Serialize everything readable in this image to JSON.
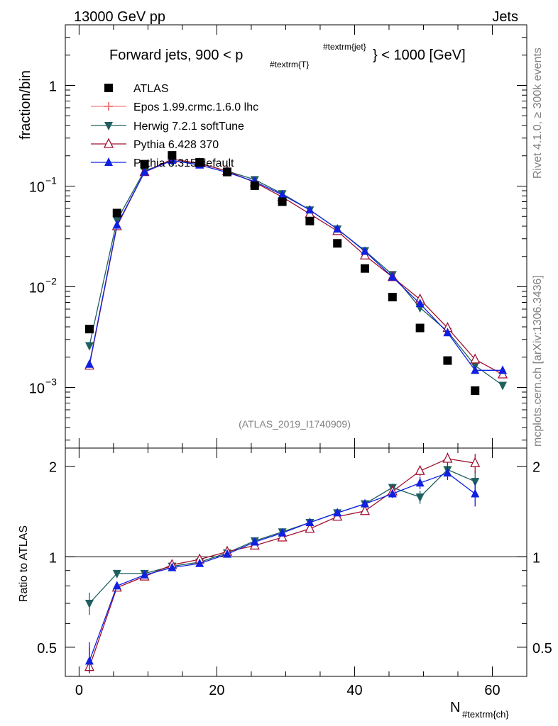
{
  "header": {
    "energy": "13000 GeV pp",
    "category": "Jets"
  },
  "side_labels": {
    "rivet": "Rivet 4.1.0, ≥ 300k events",
    "site": "mcplots.cern.ch [arXiv:1306.3436]"
  },
  "colors": {
    "data": "#000000",
    "epos": "#f08080",
    "herwig": "#1f5f5f",
    "pythia6": "#a01030",
    "pythia8": "#1020e0",
    "refline": "#000000",
    "sidetext": "#808080"
  },
  "chart_data": [
    {
      "type": "scatter",
      "panel": "main",
      "title_parts": {
        "prefix": "Forward jets, 900 < p",
        "sub": "#textrm{T}",
        "sup": "#textrm{jet}",
        "suffix": "} < 1000 [GeV]"
      },
      "ylabel": "fraction/bin",
      "analysis_id": "(ATLAS_2019_I1740909)",
      "yscale": "log",
      "xlim": [
        -2,
        65
      ],
      "ylim": [
        0.00025,
        4.0
      ],
      "yticks": [
        {
          "value": 0.001,
          "base": "10",
          "exp": "−3"
        },
        {
          "value": 0.01,
          "base": "10",
          "exp": "−2"
        },
        {
          "value": 0.1,
          "base": "10",
          "exp": "−1"
        },
        {
          "value": 1,
          "base": "1",
          "exp": ""
        }
      ],
      "x": [
        1.5,
        5.5,
        9.5,
        13.5,
        17.5,
        21.5,
        25.5,
        29.5,
        33.5,
        37.5,
        41.5,
        45.5,
        49.5,
        53.5,
        57.5,
        61.5
      ],
      "series": [
        {
          "key": "atlas",
          "name": "ATLAS",
          "marker": "square",
          "values": [
            0.0038,
            0.054,
            0.165,
            0.202,
            0.172,
            0.138,
            0.101,
            0.07,
            0.045,
            0.027,
            0.0152,
            0.0079,
            0.0039,
            0.00185,
            0.00093,
            null
          ]
        },
        {
          "key": "epos",
          "name": "Epos 1.99.crmc.1.6.0 lhc",
          "marker": "cross",
          "values": [
            null,
            null,
            null,
            null,
            null,
            null,
            null,
            null,
            null,
            null,
            null,
            null,
            null,
            null,
            null,
            null
          ]
        },
        {
          "key": "herwig",
          "name": "Herwig 7.2.1 softTune",
          "marker": "triangle-down",
          "values": [
            0.0026,
            0.046,
            0.142,
            0.178,
            0.168,
            0.141,
            0.116,
            0.084,
            0.058,
            0.0375,
            0.0228,
            0.0132,
            0.0062,
            0.0036,
            0.00165,
            0.00105
          ]
        },
        {
          "key": "pythia6",
          "name": "Pythia 6.428 370",
          "marker": "triangle-open",
          "values": [
            0.00165,
            0.04,
            0.138,
            0.185,
            0.168,
            0.141,
            0.109,
            0.078,
            0.053,
            0.0358,
            0.0205,
            0.0125,
            0.0075,
            0.0039,
            0.0019,
            0.00135
          ]
        },
        {
          "key": "pythia8",
          "name": "Pythia 8.315 default",
          "marker": "triangle-up",
          "values": [
            0.0017,
            0.041,
            0.138,
            0.18,
            0.162,
            0.137,
            0.111,
            0.082,
            0.058,
            0.0375,
            0.0225,
            0.0125,
            0.0068,
            0.0035,
            0.00148,
            0.00148
          ]
        }
      ],
      "legend_position": "top-left"
    },
    {
      "type": "line",
      "panel": "ratio",
      "ylabel": "Ratio to ATLAS",
      "xlabel_base": "N",
      "xlabel_sub": "#textrm{ch}",
      "xlim": [
        -2,
        65
      ],
      "ylim": [
        0.4,
        2.3
      ],
      "yscale": "log",
      "reference": 1,
      "xticks": [
        0,
        20,
        40,
        60
      ],
      "yticks": [
        0.5,
        1,
        2
      ],
      "yticks_right": [
        0.5,
        1,
        2
      ],
      "x": [
        1.5,
        5.5,
        9.5,
        13.5,
        17.5,
        21.5,
        25.5,
        29.5,
        33.5,
        37.5,
        41.5,
        45.5,
        49.5,
        53.5,
        57.5,
        61.5
      ],
      "series": [
        {
          "key": "herwig",
          "name": "Herwig 7.2.1 softTune",
          "values": [
            0.7,
            0.88,
            0.88,
            0.93,
            0.96,
            1.03,
            1.13,
            1.21,
            1.3,
            1.4,
            1.5,
            1.7,
            1.58,
            1.95,
            1.78,
            null
          ],
          "errors": [
            0.06,
            0.01,
            0.01,
            0.01,
            0.01,
            0.01,
            0.01,
            0.01,
            0.01,
            0.02,
            0.03,
            0.05,
            0.08,
            0.1,
            0.15,
            null
          ]
        },
        {
          "key": "pythia6",
          "name": "Pythia 6.428 370",
          "values": [
            0.43,
            0.79,
            0.86,
            0.94,
            0.98,
            1.04,
            1.09,
            1.16,
            1.24,
            1.36,
            1.42,
            1.65,
            1.93,
            2.12,
            2.05,
            null
          ],
          "errors": [
            0.07,
            0.01,
            0.01,
            0.01,
            0.01,
            0.01,
            0.01,
            0.01,
            0.01,
            0.02,
            0.03,
            0.05,
            0.08,
            0.1,
            0.15,
            null
          ]
        },
        {
          "key": "pythia8",
          "name": "Pythia 8.315 default",
          "values": [
            0.45,
            0.8,
            0.87,
            0.92,
            0.95,
            1.02,
            1.12,
            1.2,
            1.3,
            1.4,
            1.5,
            1.62,
            1.76,
            1.9,
            1.62,
            null
          ],
          "errors": [
            0.07,
            0.01,
            0.01,
            0.01,
            0.01,
            0.01,
            0.01,
            0.01,
            0.01,
            0.02,
            0.03,
            0.05,
            0.08,
            0.1,
            0.15,
            null
          ]
        }
      ]
    }
  ]
}
